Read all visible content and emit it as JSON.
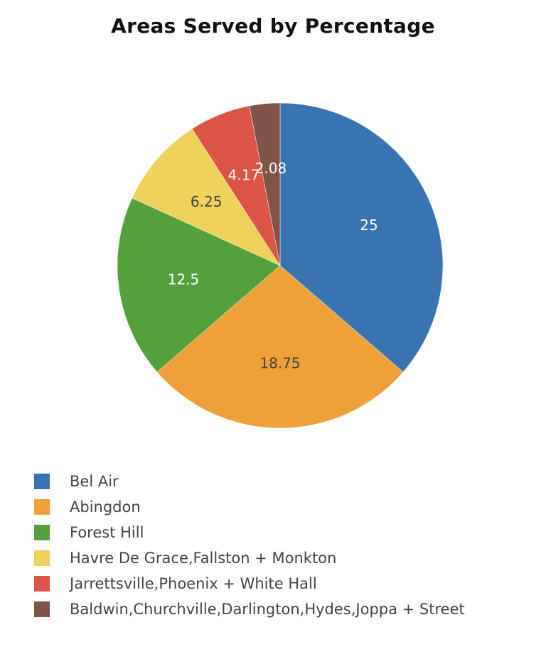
{
  "chart_data": {
    "type": "pie",
    "title": "Areas Served by Percentage",
    "categories": [
      "Bel Air",
      "Abingdon",
      "Forest Hill",
      "Havre De Grace,Fallston + Monkton",
      "Jarrettsville,Phoenix + White Hall",
      "Baldwin,Churchville,Darlington,Hydes,Joppa + Street"
    ],
    "values": [
      25,
      18.75,
      12.5,
      6.25,
      4.17,
      2.08
    ],
    "value_labels": [
      "25",
      "18.75",
      "12.5",
      "6.25",
      "4.17",
      "2.08"
    ],
    "colors": [
      "#3a74b0",
      "#f0a038",
      "#53a03d",
      "#eed25c",
      "#db5446",
      "#805449"
    ],
    "label_colors": [
      "#ffffff",
      "#444444",
      "#ffffff",
      "#444444",
      "#ffffff",
      "#ffffff"
    ],
    "legend_placement": "bottom"
  }
}
